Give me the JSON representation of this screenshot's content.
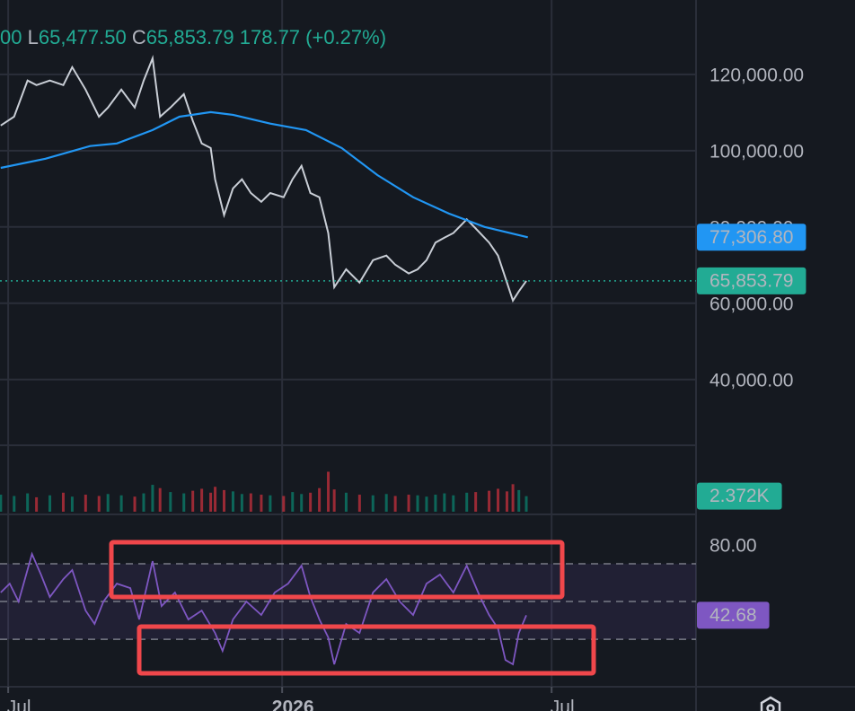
{
  "chart_data": [
    {
      "type": "line",
      "ohlc_text": [
        {
          "prefix": "",
          "text": "00"
        },
        {
          "prefix": "L",
          "text": "65,477.50"
        },
        {
          "prefix": "C",
          "text": "65,853.79"
        },
        {
          "prefix": "",
          "text": "178.77 (+0.27%)"
        }
      ],
      "x": [
        -189,
        -180,
        -171,
        -165,
        -156,
        -147,
        -141,
        -132,
        -123,
        -117,
        -108,
        -99,
        -93,
        -87,
        -82,
        -75,
        -66,
        -60,
        -54,
        -48,
        -45,
        -39,
        -33,
        -27,
        -21,
        -14,
        -8,
        1,
        7,
        13,
        19,
        25,
        31,
        35,
        43,
        52,
        61,
        70,
        76,
        85,
        91,
        97,
        103,
        109,
        115,
        124,
        130,
        139,
        145,
        151,
        155,
        159,
        164
      ],
      "series": [
        {
          "color": "#c9ced6",
          "values": [
            106600,
            108900,
            118400,
            117200,
            118400,
            117200,
            121900,
            116000,
            108900,
            111300,
            116000,
            111300,
            118400,
            124200,
            108900,
            111300,
            114800,
            107800,
            101900,
            100700,
            92500,
            83100,
            90100,
            92500,
            88900,
            86600,
            88900,
            87800,
            92500,
            96000,
            88900,
            87800,
            78400,
            64200,
            68900,
            65400,
            71300,
            72500,
            70100,
            67800,
            68900,
            71300,
            75900,
            77200,
            78400,
            82000,
            79600,
            75900,
            72500,
            65400,
            60700,
            63100,
            65853.79
          ]
        },
        {
          "color": "#2196f3",
          "x": [
            -189,
            -159,
            -129,
            -111,
            -87,
            -69,
            -48,
            -33,
            -8,
            16,
            40,
            64,
            88,
            112,
            136,
            165
          ],
          "values": [
            95500,
            97900,
            101200,
            101900,
            105400,
            108900,
            110100,
            109400,
            107100,
            105400,
            100700,
            93600,
            87800,
            83500,
            80000,
            77306.8
          ]
        }
      ],
      "price_labels": [
        {
          "value": 77306.8,
          "label": "77,306.80",
          "color": "#2196f3"
        },
        {
          "value": 65853.79,
          "label": "65,853.79",
          "color": "#22ab94"
        }
      ],
      "xlim": [
        -189.5,
        278
      ],
      "xticks": [
        {
          "value": -184,
          "label": "Jul"
        },
        {
          "value": 0,
          "label": "2026"
        },
        {
          "value": 181,
          "label": "Jul"
        }
      ],
      "ylim": [
        23000,
        139500
      ],
      "yticks": [
        {
          "value": 40000,
          "label": "40,000.00"
        },
        {
          "value": 60000,
          "label": "60,000.00"
        },
        {
          "value": 80000,
          "label": "80,000.00"
        },
        {
          "value": 100000,
          "label": "100,000.00"
        },
        {
          "value": 120000,
          "label": "120,000.00"
        }
      ],
      "grid": true
    },
    {
      "type": "bar",
      "x": [
        -189,
        -180,
        -171,
        -165,
        -156,
        -147,
        -141,
        -132,
        -123,
        -117,
        -108,
        -99,
        -93,
        -87,
        -82,
        -75,
        -66,
        -60,
        -54,
        -48,
        -45,
        -39,
        -33,
        -27,
        -21,
        -14,
        -8,
        1,
        7,
        13,
        19,
        25,
        31,
        35,
        43,
        52,
        61,
        70,
        76,
        85,
        91,
        97,
        103,
        109,
        115,
        124,
        130,
        139,
        145,
        151,
        155,
        159,
        164
      ],
      "values": [
        2600,
        2400,
        2800,
        2200,
        2500,
        2900,
        2300,
        2600,
        2400,
        2700,
        2500,
        2300,
        2800,
        4100,
        3600,
        3000,
        2800,
        3200,
        3500,
        2900,
        3800,
        3300,
        3100,
        2700,
        2800,
        2600,
        2500,
        2400,
        3000,
        2700,
        2900,
        3600,
        6100,
        3400,
        2900,
        2600,
        2500,
        2700,
        2400,
        2600,
        2500,
        2300,
        2600,
        2800,
        2500,
        2900,
        3000,
        3200,
        3500,
        3100,
        4200,
        3300,
        2372
      ],
      "ylim": [
        0,
        10000
      ],
      "value_label": {
        "value": 2372,
        "label": "2.372K",
        "color": "#22ab94"
      }
    },
    {
      "type": "line",
      "x": [
        -189,
        -183,
        -177,
        -168,
        -162,
        -156,
        -147,
        -141,
        -132,
        -126,
        -120,
        -111,
        -102,
        -96,
        -87,
        -81,
        -72,
        -63,
        -54,
        -45,
        -40,
        -33,
        -24,
        -14,
        -5,
        4,
        13,
        19,
        25,
        31,
        35,
        43,
        52,
        61,
        70,
        79,
        88,
        97,
        106,
        115,
        124,
        133,
        139,
        145,
        150,
        155,
        159,
        164
      ],
      "values": [
        54.8,
        59.5,
        50,
        75.2,
        64.3,
        52.4,
        61.9,
        66.7,
        45.2,
        38.1,
        50,
        59.5,
        57.1,
        40.5,
        71.4,
        47.6,
        54.8,
        40.5,
        45.2,
        33.3,
        23.8,
        40.5,
        50,
        42.9,
        54.8,
        59.5,
        69,
        52.4,
        40.5,
        31,
        16.7,
        38.1,
        33.3,
        54.8,
        61.9,
        50,
        42.9,
        59.5,
        64.3,
        54.8,
        69,
        52.4,
        42.9,
        35.7,
        19,
        16.7,
        33.3,
        42.68
      ],
      "color": "#7e57c2",
      "ylim": [
        4.8,
        96.2
      ],
      "yticks": [
        {
          "value": 80,
          "label": "80.00"
        }
      ],
      "levels": [
        70,
        50,
        30
      ],
      "value_label": {
        "value": 42.68,
        "label": "42.68",
        "color": "#7e57c2"
      }
    }
  ]
}
